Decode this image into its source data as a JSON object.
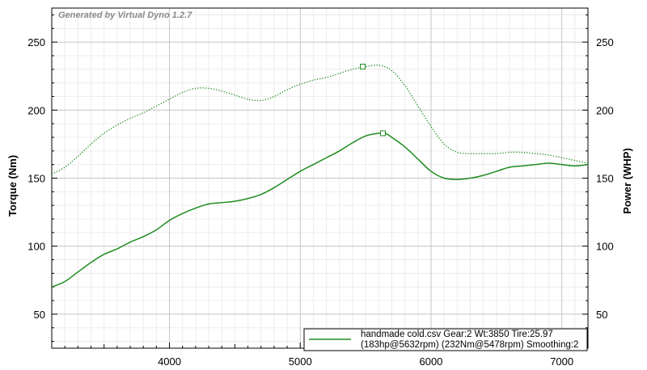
{
  "watermark": "Generated by Virtual Dyno 1.2.7",
  "chart_data": {
    "type": "line",
    "title": "",
    "xlabel": "",
    "ylabel": "Torque (Nm)",
    "y2label": "Power (WHP)",
    "xlim": [
      3100,
      7200
    ],
    "ylim": [
      25,
      275
    ],
    "y2lim": [
      25,
      275
    ],
    "x_ticks": [
      4000,
      5000,
      6000,
      7000
    ],
    "y_ticks": [
      50,
      100,
      150,
      200,
      250
    ],
    "y2_ticks": [
      50,
      100,
      150,
      200,
      250
    ],
    "grid": true,
    "legend_position": "bottom-right",
    "legend": {
      "line1": "handmade cold.csv Gear:2 Wt:3850 Tire:25.97",
      "line2": "(183hp@5632rpm) (232Nm@5478rpm) Smoothing:2"
    },
    "colors": {
      "series": "#1e8c1e"
    },
    "series": [
      {
        "axis": "right",
        "style": "solid",
        "peak_marker": {
          "x": 5632,
          "y": 183
        },
        "points": [
          [
            3100,
            70
          ],
          [
            3200,
            74
          ],
          [
            3300,
            81
          ],
          [
            3400,
            88
          ],
          [
            3500,
            94
          ],
          [
            3600,
            98
          ],
          [
            3700,
            103
          ],
          [
            3800,
            107
          ],
          [
            3900,
            112
          ],
          [
            4000,
            119
          ],
          [
            4100,
            124
          ],
          [
            4200,
            128
          ],
          [
            4300,
            131
          ],
          [
            4400,
            132
          ],
          [
            4500,
            133
          ],
          [
            4600,
            135
          ],
          [
            4700,
            138
          ],
          [
            4800,
            143
          ],
          [
            4900,
            149
          ],
          [
            5000,
            155
          ],
          [
            5100,
            160
          ],
          [
            5200,
            165
          ],
          [
            5300,
            170
          ],
          [
            5400,
            176
          ],
          [
            5500,
            181
          ],
          [
            5600,
            183
          ],
          [
            5650,
            183
          ],
          [
            5700,
            180
          ],
          [
            5800,
            173
          ],
          [
            5900,
            164
          ],
          [
            6000,
            155
          ],
          [
            6100,
            150
          ],
          [
            6200,
            149
          ],
          [
            6300,
            150
          ],
          [
            6400,
            152
          ],
          [
            6500,
            155
          ],
          [
            6600,
            158
          ],
          [
            6700,
            159
          ],
          [
            6800,
            160
          ],
          [
            6900,
            161
          ],
          [
            7000,
            160
          ],
          [
            7100,
            159
          ],
          [
            7200,
            160
          ]
        ]
      },
      {
        "axis": "left",
        "style": "dotted",
        "peak_marker": {
          "x": 5478,
          "y": 232
        },
        "points": [
          [
            3100,
            153
          ],
          [
            3200,
            158
          ],
          [
            3300,
            166
          ],
          [
            3400,
            175
          ],
          [
            3500,
            183
          ],
          [
            3600,
            189
          ],
          [
            3700,
            194
          ],
          [
            3800,
            198
          ],
          [
            3900,
            203
          ],
          [
            4000,
            208
          ],
          [
            4100,
            213
          ],
          [
            4200,
            216
          ],
          [
            4300,
            216
          ],
          [
            4400,
            214
          ],
          [
            4500,
            211
          ],
          [
            4600,
            208
          ],
          [
            4700,
            207
          ],
          [
            4800,
            210
          ],
          [
            4900,
            215
          ],
          [
            5000,
            219
          ],
          [
            5100,
            222
          ],
          [
            5200,
            224
          ],
          [
            5300,
            227
          ],
          [
            5400,
            230
          ],
          [
            5500,
            232
          ],
          [
            5600,
            233
          ],
          [
            5700,
            229
          ],
          [
            5800,
            218
          ],
          [
            5900,
            203
          ],
          [
            6000,
            188
          ],
          [
            6100,
            175
          ],
          [
            6200,
            169
          ],
          [
            6300,
            168
          ],
          [
            6400,
            168
          ],
          [
            6500,
            168
          ],
          [
            6600,
            169
          ],
          [
            6700,
            169
          ],
          [
            6800,
            168
          ],
          [
            6900,
            167
          ],
          [
            7000,
            165
          ],
          [
            7100,
            163
          ],
          [
            7200,
            161
          ]
        ]
      }
    ]
  }
}
